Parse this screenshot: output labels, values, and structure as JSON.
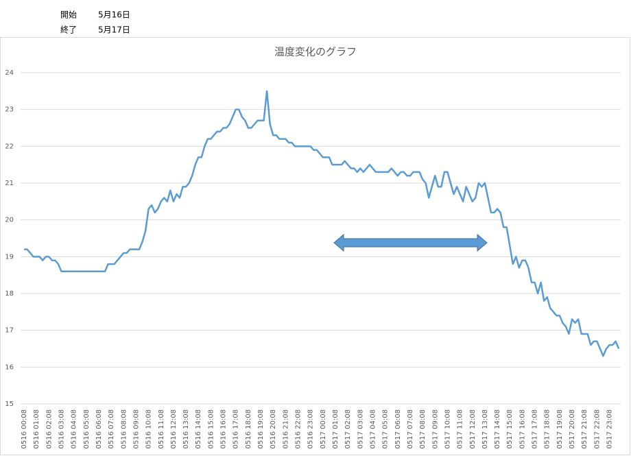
{
  "header": {
    "start_label": "開始",
    "start_date": "5月16日",
    "end_label": "終了",
    "end_date": "5月17日"
  },
  "chart_data": {
    "type": "line",
    "title": "温度変化のグラフ",
    "color": "#5b9bd5",
    "grid": true,
    "ylim": [
      15,
      24
    ],
    "yticks": [
      15,
      16,
      17,
      18,
      19,
      20,
      21,
      22,
      23,
      24
    ],
    "categories": [
      "0516 00:08",
      null,
      null,
      null,
      "0516 01:08",
      null,
      null,
      null,
      "0516 02:08",
      null,
      null,
      null,
      "0516 03:08",
      null,
      null,
      null,
      "0516 04:08",
      null,
      null,
      null,
      "0516 05:08",
      null,
      null,
      null,
      "0516 06:08",
      null,
      null,
      null,
      "0516 07:08",
      null,
      null,
      null,
      "0516 08:08",
      null,
      null,
      null,
      "0516 09:08",
      null,
      null,
      null,
      "0516 10:08",
      null,
      null,
      null,
      "0516 11:08",
      null,
      null,
      null,
      "0516 12:08",
      null,
      null,
      null,
      "0516 13:08",
      null,
      null,
      null,
      "0516 14:08",
      null,
      null,
      null,
      "0516 15:08",
      null,
      null,
      null,
      "0516 16:08",
      null,
      null,
      null,
      "0516 17:08",
      null,
      null,
      null,
      "0516 18:08",
      null,
      null,
      null,
      "0516 19:08",
      null,
      null,
      null,
      "0516 20:08",
      null,
      null,
      null,
      "0516 21:08",
      null,
      null,
      null,
      "0516 22:08",
      null,
      null,
      null,
      "0516 23:08",
      null,
      null,
      null,
      "0517 00:08",
      null,
      null,
      null,
      "0517 01:08",
      null,
      null,
      null,
      "0517 02:08",
      null,
      null,
      null,
      "0517 03:08",
      null,
      null,
      null,
      "0517 04:08",
      null,
      null,
      null,
      "0517 05:08",
      null,
      null,
      null,
      "0517 06:08",
      null,
      null,
      null,
      "0517 07:08",
      null,
      null,
      null,
      "0517 08:08",
      null,
      null,
      null,
      "0517 09:08",
      null,
      null,
      null,
      "0517 10:08",
      null,
      null,
      null,
      "0517 11:08",
      null,
      null,
      null,
      "0517 12:08",
      null,
      null,
      null,
      "0517 13:08",
      null,
      null,
      null,
      "0517 14:08",
      null,
      null,
      null,
      "0517 15:08",
      null,
      null,
      null,
      "0517 16:08",
      null,
      null,
      null,
      "0517 17:08",
      null,
      null,
      null,
      "0517 18:08",
      null,
      null,
      null,
      "0517 19:08",
      null,
      null,
      null,
      "0517 20:08",
      null,
      null,
      null,
      "0517 21:08",
      null,
      null,
      null,
      "0517 22:08",
      null,
      null,
      null,
      "0517 23:08",
      null,
      null,
      null
    ],
    "values": [
      19.2,
      19.2,
      19.1,
      19.0,
      19.0,
      19.0,
      18.9,
      19.0,
      19.0,
      18.9,
      18.9,
      18.8,
      18.6,
      18.6,
      18.6,
      18.6,
      18.6,
      18.6,
      18.6,
      18.6,
      18.6,
      18.6,
      18.6,
      18.6,
      18.6,
      18.6,
      18.6,
      18.8,
      18.8,
      18.8,
      18.9,
      19.0,
      19.1,
      19.1,
      19.2,
      19.2,
      19.2,
      19.2,
      19.4,
      19.7,
      20.3,
      20.4,
      20.2,
      20.3,
      20.5,
      20.6,
      20.5,
      20.8,
      20.5,
      20.7,
      20.6,
      20.9,
      20.9,
      21.0,
      21.2,
      21.5,
      21.7,
      21.7,
      22.0,
      22.2,
      22.2,
      22.3,
      22.4,
      22.4,
      22.5,
      22.5,
      22.6,
      22.8,
      23.0,
      23.0,
      22.8,
      22.7,
      22.5,
      22.5,
      22.6,
      22.7,
      22.7,
      22.7,
      23.5,
      22.6,
      22.3,
      22.3,
      22.2,
      22.2,
      22.2,
      22.1,
      22.1,
      22.0,
      22.0,
      22.0,
      22.0,
      22.0,
      22.0,
      21.9,
      21.9,
      21.8,
      21.7,
      21.7,
      21.7,
      21.5,
      21.5,
      21.5,
      21.5,
      21.6,
      21.5,
      21.4,
      21.4,
      21.3,
      21.4,
      21.3,
      21.4,
      21.5,
      21.4,
      21.3,
      21.3,
      21.3,
      21.3,
      21.3,
      21.4,
      21.3,
      21.2,
      21.3,
      21.3,
      21.2,
      21.2,
      21.3,
      21.3,
      21.3,
      21.1,
      21.0,
      20.6,
      20.9,
      21.2,
      20.9,
      20.9,
      21.3,
      21.3,
      21.0,
      20.7,
      20.9,
      20.7,
      20.5,
      20.9,
      20.7,
      20.5,
      20.6,
      21.0,
      20.9,
      21.0,
      20.6,
      20.2,
      20.2,
      20.3,
      20.2,
      19.8,
      19.8,
      19.3,
      18.8,
      19.0,
      18.7,
      18.9,
      18.9,
      18.7,
      18.3,
      18.3,
      18.0,
      18.3,
      17.8,
      17.9,
      17.6,
      17.5,
      17.4,
      17.4,
      17.2,
      17.1,
      16.9,
      17.3,
      17.2,
      17.3,
      16.9,
      16.9,
      16.9,
      16.6,
      16.7,
      16.7,
      16.5,
      16.3,
      16.5,
      16.6,
      16.6,
      16.7,
      16.5
    ]
  }
}
